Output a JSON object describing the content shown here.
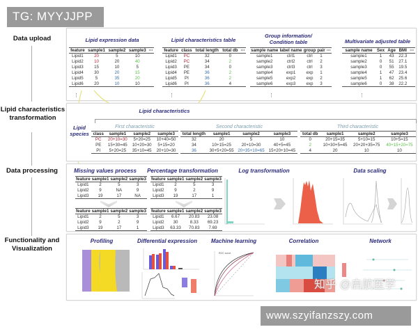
{
  "watermark_top": "TG: MYYJJPP",
  "watermark_bottom": "www.szyifanzszy.com",
  "watermark_zhihu": "知乎 @启航医学",
  "colors": {
    "title": "#2b2a7a",
    "red": "#b0283a",
    "green": "#5cbf4a",
    "blue": "#3a6ea8",
    "arrow": "#e6e27a"
  },
  "steps": {
    "upload": "Data upload",
    "transform": "Lipid characteristics transformation",
    "processing": "Data processing",
    "visual": "Functionality and Visualization"
  },
  "upload": {
    "expression": {
      "title": "Lipid expression data",
      "headers": [
        "feature",
        "sample1",
        "sample2",
        "sample3",
        "⋯"
      ],
      "rows": [
        [
          "Lipid1",
          "20",
          "5",
          "10",
          ""
        ],
        [
          "Lipid2",
          "10",
          "20",
          "40",
          ""
        ],
        [
          "Lipid3",
          "15",
          "10",
          "5",
          ""
        ],
        [
          "Lipid4",
          "30",
          "20",
          "15",
          ""
        ],
        [
          "Lipid5",
          "5",
          "35",
          "20",
          ""
        ],
        [
          "Lipid6",
          "20",
          "10",
          "10",
          ""
        ]
      ],
      "colors": {
        "0-1": "red",
        "1-1": "red",
        "1-3": "green",
        "3-2": "blue",
        "3-3": "green",
        "4-2": "blue",
        "4-3": "green",
        "5-2": "blue"
      }
    },
    "characteristics": {
      "title": "Lipid characteristics table",
      "headers": [
        "feature",
        "class",
        "total length",
        "total db",
        "⋯"
      ],
      "rows": [
        [
          "Lipid1",
          "PC",
          "32",
          "0",
          ""
        ],
        [
          "Lipid2",
          "PC",
          "34",
          "2",
          ""
        ],
        [
          "Lipid3",
          "PE",
          "34",
          "0",
          ""
        ],
        [
          "Lipid4",
          "PE",
          "36",
          "2",
          ""
        ],
        [
          "Lipid5",
          "PI",
          "36",
          "2",
          ""
        ],
        [
          "Lipid6",
          "PI",
          "36",
          "4",
          ""
        ]
      ],
      "colors": {
        "0-1": "red",
        "1-1": "red",
        "1-3": "green",
        "3-2": "blue",
        "3-3": "green",
        "4-2": "blue",
        "4-3": "green",
        "5-2": "blue"
      }
    },
    "group": {
      "title": "Group information/ Condition table",
      "headers": [
        "sample name",
        "label name",
        "group",
        "pair",
        "⋯"
      ],
      "rows": [
        [
          "sample1",
          "ctrl1",
          "ctrl",
          "1",
          ""
        ],
        [
          "sample2",
          "ctrl2",
          "ctrl",
          "2",
          ""
        ],
        [
          "sample3",
          "ctrl3",
          "ctrl",
          "3",
          ""
        ],
        [
          "sample4",
          "exp1",
          "exp",
          "1",
          ""
        ],
        [
          "sample5",
          "exp2",
          "exp",
          "2",
          ""
        ],
        [
          "sample6",
          "exp3",
          "exp",
          "3",
          ""
        ]
      ]
    },
    "multivariate": {
      "title": "Multivariate adjusted table",
      "headers": [
        "sample name",
        "Sex",
        "Age",
        "BMI",
        "⋯"
      ],
      "rows": [
        [
          "sample1",
          "1",
          "43",
          "22.3",
          ""
        ],
        [
          "sample2",
          "0",
          "51",
          "27.1",
          ""
        ],
        [
          "sample3",
          "0",
          "55",
          "19.5",
          ""
        ],
        [
          "sample4",
          "1",
          "47",
          "23.4",
          ""
        ],
        [
          "sample5",
          "1",
          "62",
          "25.6",
          ""
        ],
        [
          "sample6",
          "0",
          "38",
          "22.2",
          ""
        ]
      ]
    },
    "ellipsis": "⋮"
  },
  "transform": {
    "title": "Lipid characteristics",
    "species_label": "Lipid species",
    "first": {
      "title": "First characteristic",
      "headers": [
        "class",
        "sample1",
        "sample2",
        "sample3"
      ],
      "rows": [
        [
          "PC",
          "20+10=30",
          "5+20=25",
          "10+40=50"
        ],
        [
          "PE",
          "15+30=45",
          "10+20=30",
          "5+15=20"
        ],
        [
          "PI",
          "5+20=25",
          "35+10=45",
          "20+10=30"
        ]
      ],
      "colors": {
        "0-0": "red",
        "0-1": "red"
      }
    },
    "second": {
      "title": "Second characteristic",
      "headers": [
        "total length",
        "sample1",
        "sample2",
        "sample3"
      ],
      "rows": [
        [
          "32",
          "20",
          "5",
          "10"
        ],
        [
          "34",
          "10+15=25",
          "20+10=30",
          "40+5=45"
        ],
        [
          "36",
          "30+5+20=55",
          "20+35+10=65",
          "15+20+10=45"
        ]
      ],
      "colors": {
        "2-0": "blue",
        "2-2": "blue"
      }
    },
    "third": {
      "title": "Third characteristic",
      "headers": [
        "total db",
        "sample1",
        "sample2",
        "sample3"
      ],
      "rows": [
        [
          "0",
          "20+15=35",
          "5+10=15",
          "10+5=15"
        ],
        [
          "2",
          "10+30+5=45",
          "20+20+35=75",
          "40+15+20=75"
        ],
        [
          "4",
          "20",
          "10",
          "10"
        ]
      ],
      "colors": {
        "1-0": "green",
        "1-3": "green"
      }
    }
  },
  "processing": {
    "missing": {
      "title": "Missing values process",
      "before": {
        "headers": [
          "feature",
          "sample1",
          "sample2",
          "sample3"
        ],
        "rows": [
          [
            "Lipid1",
            "2",
            "5",
            "3"
          ],
          [
            "Lipid2",
            "9",
            "NA",
            "9"
          ],
          [
            "Lipid3",
            "19",
            "17",
            "NA"
          ]
        ]
      },
      "after": {
        "headers": [
          "feature",
          "sample1",
          "sample2",
          "sample3"
        ],
        "rows": [
          [
            "Lipid1",
            "2",
            "5",
            "3"
          ],
          [
            "Lipid2",
            "9",
            "2",
            "9"
          ],
          [
            "Lipid3",
            "19",
            "17",
            "1"
          ]
        ]
      }
    },
    "percentage": {
      "title": "Percentage transformation",
      "before": {
        "headers": [
          "feature",
          "sample1",
          "sample2",
          "sample3"
        ],
        "rows": [
          [
            "Lipid1",
            "2",
            "5",
            "3"
          ],
          [
            "Lipid2",
            "9",
            "2",
            "9"
          ],
          [
            "Lipid3",
            "19",
            "17",
            "1"
          ]
        ]
      },
      "after": {
        "headers": [
          "feature",
          "sample1",
          "sample2",
          "sample3"
        ],
        "rows": [
          [
            "Lipid1",
            "6.67",
            "20.83",
            "23.08"
          ],
          [
            "Lipid2",
            "30",
            "8.33",
            "69.23"
          ],
          [
            "Lipid3",
            "63.33",
            "70.83",
            "7.69"
          ]
        ]
      }
    },
    "log": {
      "title": "Log transformation"
    },
    "scaling": {
      "title": "Data scaling"
    }
  },
  "visual": {
    "profiling": "Profiling",
    "differential": "Differential expression",
    "ml": "Machine learning",
    "ml_plot_title": "ROC curve",
    "correlation": "Correlation",
    "network": "Network"
  }
}
